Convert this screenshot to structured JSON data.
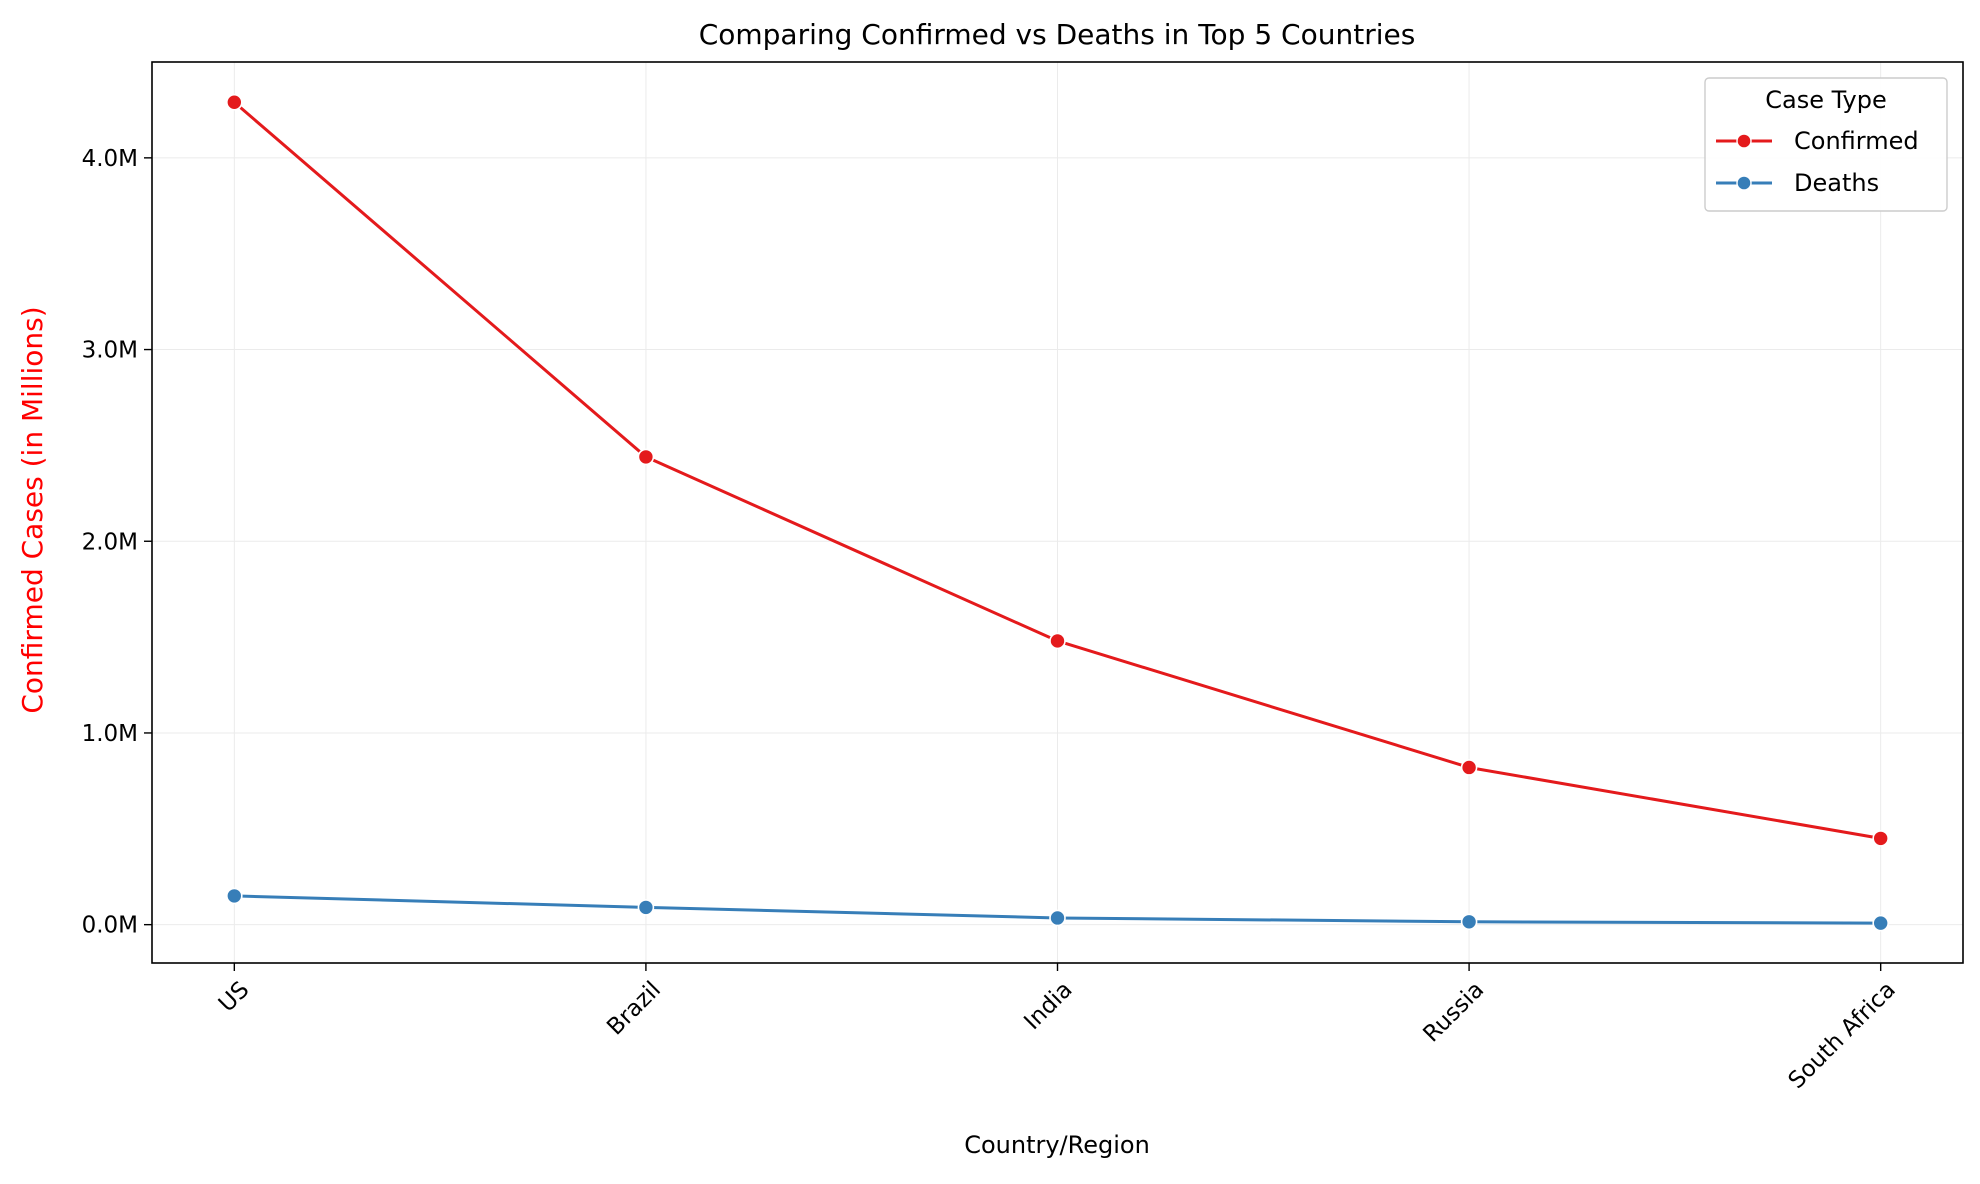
{
  "chart_data": {
    "type": "line",
    "title": "Comparing Confirmed vs Deaths in Top 5 Countries",
    "xlabel": "Country/Region",
    "ylabel": "Confirmed Cases (in Millions)",
    "categories": [
      "US",
      "Brazil",
      "India",
      "Russia",
      "South Africa"
    ],
    "ylim": [
      -0.2,
      4.5
    ],
    "yticks": [
      0.0,
      1.0,
      2.0,
      3.0,
      4.0
    ],
    "ytick_labels": [
      "0.0M",
      "1.0M",
      "2.0M",
      "3.0M",
      "4.0M"
    ],
    "grid": true,
    "legend": {
      "title": "Case Type",
      "placement": "top-right"
    },
    "series": [
      {
        "name": "Confirmed",
        "color": "#e41a1c",
        "values": [
          4.29,
          2.44,
          1.48,
          0.82,
          0.45
        ]
      },
      {
        "name": "Deaths",
        "color": "#377eb8",
        "values": [
          0.15,
          0.09,
          0.035,
          0.015,
          0.008
        ]
      }
    ],
    "colors": {
      "ylabel": "#ff0000",
      "axis": "#000000",
      "grid": "#ebebeb"
    }
  }
}
